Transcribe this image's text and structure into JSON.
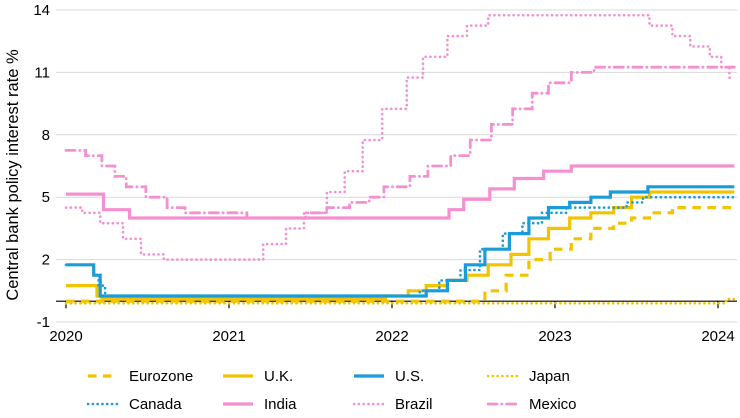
{
  "chart_data": {
    "type": "line",
    "title": "",
    "ylabel": "Central bank policy interest rate %",
    "xlabel": "",
    "interpolation": "step-after",
    "xlim": [
      2020,
      2024.1
    ],
    "ylim": [
      -1,
      14
    ],
    "x_ticks": [
      "2020",
      "2021",
      "2022",
      "2023",
      "2024"
    ],
    "x_tick_values": [
      2020,
      2021,
      2022,
      2023,
      2024
    ],
    "y_ticks": [
      "-1",
      "2",
      "5",
      "8",
      "11",
      "14"
    ],
    "y_tick_values": [
      -1,
      2,
      5,
      8,
      11,
      14
    ],
    "grid": "horizontal-only",
    "legend_position": "bottom",
    "colors": {
      "yellow": "#f2c300",
      "blue": "#1a9cd8",
      "pink": "#f490d1",
      "gridline": "#d9d9d9",
      "axis": "#000000",
      "text": "#000000"
    },
    "series": [
      {
        "name": "Eurozone",
        "color_key": "yellow",
        "line_style": "dashed",
        "points": [
          [
            2020,
            0
          ],
          [
            2022.57,
            0.5
          ],
          [
            2022.7,
            1.25
          ],
          [
            2022.84,
            2
          ],
          [
            2022.97,
            2.5
          ],
          [
            2023.1,
            3
          ],
          [
            2023.22,
            3.5
          ],
          [
            2023.36,
            3.75
          ],
          [
            2023.47,
            4
          ],
          [
            2023.58,
            4.25
          ],
          [
            2023.72,
            4.5
          ]
        ]
      },
      {
        "name": "U.K.",
        "color_key": "yellow",
        "line_style": "solid",
        "points": [
          [
            2020,
            0.75
          ],
          [
            2020.19,
            0.25
          ],
          [
            2020.22,
            0.1
          ],
          [
            2021.96,
            0.25
          ],
          [
            2022.1,
            0.5
          ],
          [
            2022.21,
            0.75
          ],
          [
            2022.34,
            1
          ],
          [
            2022.46,
            1.25
          ],
          [
            2022.59,
            1.75
          ],
          [
            2022.73,
            2.25
          ],
          [
            2022.84,
            3
          ],
          [
            2022.96,
            3.5
          ],
          [
            2023.09,
            4
          ],
          [
            2023.22,
            4.25
          ],
          [
            2023.36,
            4.5
          ],
          [
            2023.47,
            5
          ],
          [
            2023.58,
            5.25
          ]
        ]
      },
      {
        "name": "U.S.",
        "color_key": "blue",
        "line_style": "solid",
        "points": [
          [
            2020,
            1.75
          ],
          [
            2020.17,
            1.25
          ],
          [
            2020.21,
            0.25
          ],
          [
            2022.21,
            0.5
          ],
          [
            2022.34,
            1
          ],
          [
            2022.45,
            1.75
          ],
          [
            2022.57,
            2.5
          ],
          [
            2022.72,
            3.25
          ],
          [
            2022.84,
            4
          ],
          [
            2022.96,
            4.5
          ],
          [
            2023.09,
            4.75
          ],
          [
            2023.22,
            5
          ],
          [
            2023.34,
            5.25
          ],
          [
            2023.57,
            5.5
          ]
        ]
      },
      {
        "name": "Japan",
        "color_key": "yellow",
        "line_style": "dotted",
        "points": [
          [
            2020,
            -0.1
          ],
          [
            2024.05,
            0.1
          ]
        ]
      },
      {
        "name": "Canada",
        "color_key": "blue",
        "line_style": "dotted",
        "points": [
          [
            2020,
            1.75
          ],
          [
            2020.17,
            1.25
          ],
          [
            2020.2,
            0.75
          ],
          [
            2020.24,
            0.25
          ],
          [
            2022.17,
            0.5
          ],
          [
            2022.29,
            1
          ],
          [
            2022.42,
            1.5
          ],
          [
            2022.54,
            2.5
          ],
          [
            2022.68,
            3.25
          ],
          [
            2022.8,
            3.75
          ],
          [
            2022.92,
            4.25
          ],
          [
            2023.07,
            4.5
          ],
          [
            2023.44,
            4.75
          ],
          [
            2023.54,
            5
          ]
        ]
      },
      {
        "name": "India",
        "color_key": "pink",
        "line_style": "solid",
        "points": [
          [
            2020,
            5.15
          ],
          [
            2020.23,
            4.4
          ],
          [
            2020.39,
            4
          ],
          [
            2022.35,
            4.4
          ],
          [
            2022.44,
            4.9
          ],
          [
            2022.6,
            5.4
          ],
          [
            2022.75,
            5.9
          ],
          [
            2022.93,
            6.25
          ],
          [
            2023.1,
            6.5
          ]
        ]
      },
      {
        "name": "Brazil",
        "color_key": "pink",
        "line_style": "dotted",
        "points": [
          [
            2020,
            4.5
          ],
          [
            2020.1,
            4.25
          ],
          [
            2020.21,
            3.75
          ],
          [
            2020.35,
            3
          ],
          [
            2020.46,
            2.25
          ],
          [
            2020.6,
            2
          ],
          [
            2021.21,
            2.75
          ],
          [
            2021.35,
            3.5
          ],
          [
            2021.46,
            4.25
          ],
          [
            2021.6,
            5.25
          ],
          [
            2021.71,
            6.25
          ],
          [
            2021.82,
            7.75
          ],
          [
            2021.94,
            9.25
          ],
          [
            2022.09,
            10.75
          ],
          [
            2022.19,
            11.75
          ],
          [
            2022.34,
            12.75
          ],
          [
            2022.46,
            13.25
          ],
          [
            2022.59,
            13.75
          ],
          [
            2023.58,
            13.25
          ],
          [
            2023.72,
            12.75
          ],
          [
            2023.83,
            12.25
          ],
          [
            2023.95,
            11.75
          ],
          [
            2024.02,
            11.25
          ],
          [
            2024.07,
            10.75
          ]
        ]
      },
      {
        "name": "Mexico",
        "color_key": "pink",
        "line_style": "dashdot",
        "points": [
          [
            2020,
            7.25
          ],
          [
            2020.12,
            7
          ],
          [
            2020.22,
            6.5
          ],
          [
            2020.3,
            6
          ],
          [
            2020.37,
            5.5
          ],
          [
            2020.49,
            5
          ],
          [
            2020.62,
            4.5
          ],
          [
            2020.73,
            4.25
          ],
          [
            2021.11,
            4
          ],
          [
            2021.47,
            4.25
          ],
          [
            2021.6,
            4.5
          ],
          [
            2021.74,
            4.75
          ],
          [
            2021.86,
            5
          ],
          [
            2021.95,
            5.5
          ],
          [
            2022.11,
            6
          ],
          [
            2022.22,
            6.5
          ],
          [
            2022.36,
            7
          ],
          [
            2022.48,
            7.75
          ],
          [
            2022.61,
            8.5
          ],
          [
            2022.74,
            9.25
          ],
          [
            2022.86,
            10
          ],
          [
            2022.96,
            10.5
          ],
          [
            2023.1,
            11
          ],
          [
            2023.24,
            11.25
          ]
        ]
      }
    ]
  }
}
